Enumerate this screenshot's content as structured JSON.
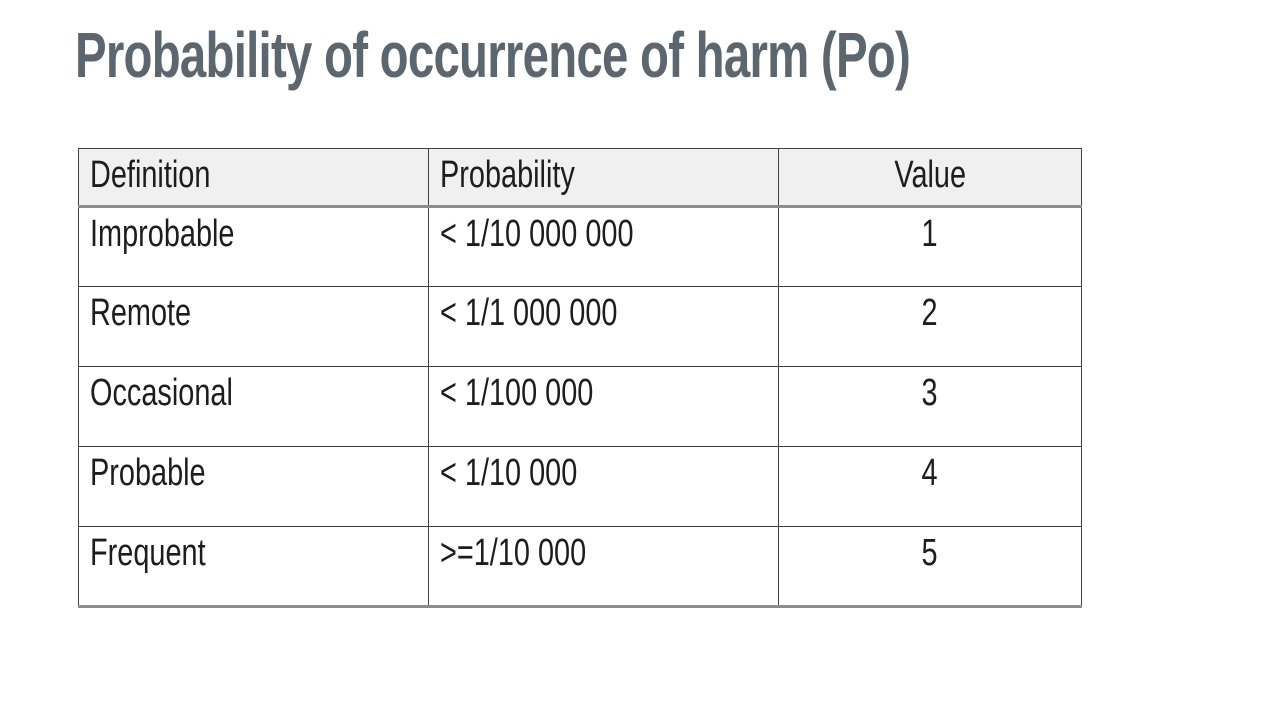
{
  "slide": {
    "title": "Probability of occurrence of harm (Po)"
  },
  "theme": {
    "title_color": "#5b666f",
    "header_bg": "#f0f0f0",
    "border_dark": "#414141",
    "border_gray": "#8c8c8c",
    "text_color": "#1d1d1d",
    "bg": "#ffffff"
  },
  "table": {
    "headers": {
      "definition": "Definition",
      "probability": "Probability",
      "value": "Value"
    },
    "rows": [
      {
        "definition": "Improbable",
        "probability": "< 1/10 000 000",
        "value": "1"
      },
      {
        "definition": "Remote",
        "probability": "< 1/1 000 000",
        "value": "2"
      },
      {
        "definition": "Occasional",
        "probability": "< 1/100 000",
        "value": "3"
      },
      {
        "definition": "Probable",
        "probability": "< 1/10 000",
        "value": "4"
      },
      {
        "definition": "Frequent",
        "probability": ">=1/10 000",
        "value": "5"
      }
    ]
  }
}
